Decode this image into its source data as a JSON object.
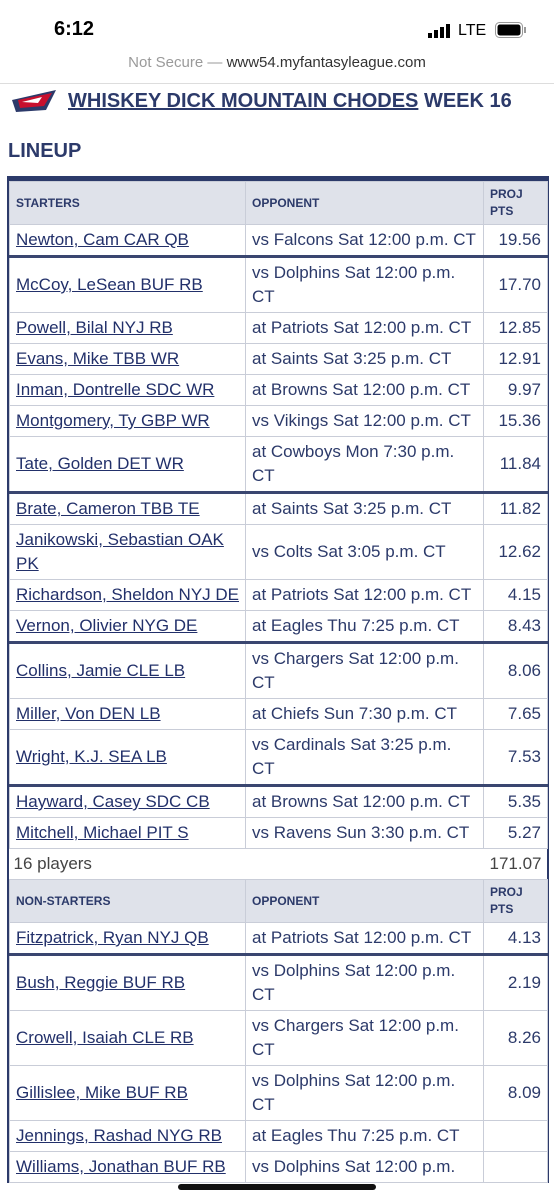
{
  "status_bar": {
    "time": "6:12",
    "network": "LTE"
  },
  "browser": {
    "security": "Not Secure",
    "separator": "—",
    "url": "www54.myfantasyleague.com"
  },
  "page": {
    "team": "WHISKEY DICK MOUNTAIN CHODES",
    "week": "WEEK 16",
    "section": "LINEUP"
  },
  "starters": {
    "headers": [
      "STARTERS",
      "OPPONENT",
      "PROJ PTS"
    ],
    "rows": [
      {
        "player": "Newton, Cam CAR QB",
        "opponent": "vs Falcons Sat 12:00 p.m. CT",
        "pts": "19.56"
      },
      {
        "player": "McCoy, LeSean BUF RB",
        "opponent": "vs Dolphins Sat 12:00 p.m. CT",
        "pts": "17.70"
      },
      {
        "player": "Powell, Bilal NYJ RB",
        "opponent": "at Patriots Sat 12:00 p.m. CT",
        "pts": "12.85"
      },
      {
        "player": "Evans, Mike TBB WR",
        "opponent": "at Saints Sat 3:25 p.m. CT",
        "pts": "12.91"
      },
      {
        "player": "Inman, Dontrelle SDC WR",
        "opponent": "at Browns Sat 12:00 p.m. CT",
        "pts": "9.97"
      },
      {
        "player": "Montgomery, Ty GBP WR",
        "opponent": "vs Vikings Sat 12:00 p.m. CT",
        "pts": "15.36"
      },
      {
        "player": "Tate, Golden DET WR",
        "opponent": "at Cowboys Mon 7:30 p.m. CT",
        "pts": "11.84"
      },
      {
        "player": "Brate, Cameron TBB TE",
        "opponent": "at Saints Sat 3:25 p.m. CT",
        "pts": "11.82"
      },
      {
        "player": "Janikowski, Sebastian OAK PK",
        "opponent": "vs Colts Sat 3:05 p.m. CT",
        "pts": "12.62"
      },
      {
        "player": "Richardson, Sheldon NYJ DE",
        "opponent": "at Patriots Sat 12:00 p.m. CT",
        "pts": "4.15"
      },
      {
        "player": "Vernon, Olivier NYG DE",
        "opponent": "at Eagles Thu 7:25 p.m. CT",
        "pts": "8.43"
      },
      {
        "player": "Collins, Jamie CLE LB",
        "opponent": "vs Chargers Sat 12:00 p.m. CT",
        "pts": "8.06"
      },
      {
        "player": "Miller, Von DEN LB",
        "opponent": "at Chiefs Sun 7:30 p.m. CT",
        "pts": "7.65"
      },
      {
        "player": "Wright, K.J. SEA LB",
        "opponent": "vs Cardinals Sat 3:25 p.m. CT",
        "pts": "7.53"
      },
      {
        "player": "Hayward, Casey SDC CB",
        "opponent": "at Browns Sat 12:00 p.m. CT",
        "pts": "5.35"
      },
      {
        "player": "Mitchell, Michael PIT S",
        "opponent": "vs Ravens Sun 3:30 p.m. CT",
        "pts": "5.27"
      }
    ],
    "footer": {
      "count": "16 players",
      "total": "171.07"
    }
  },
  "non_starters": {
    "headers": [
      "NON-STARTERS",
      "OPPONENT",
      "PROJ PTS"
    ],
    "rows": [
      {
        "player": "Fitzpatrick, Ryan NYJ QB",
        "opponent": "at Patriots Sat 12:00 p.m. CT",
        "pts": "4.13"
      },
      {
        "player": "Bush, Reggie BUF RB",
        "opponent": "vs Dolphins Sat 12:00 p.m. CT",
        "pts": "2.19"
      },
      {
        "player": "Crowell, Isaiah CLE RB",
        "opponent": "vs Chargers Sat 12:00 p.m. CT",
        "pts": "8.26"
      },
      {
        "player": "Gillislee, Mike BUF RB",
        "opponent": "vs Dolphins Sat 12:00 p.m. CT",
        "pts": "8.09"
      },
      {
        "player": "Jennings, Rashad NYG RB",
        "opponent": "at Eagles Thu 7:25 p.m. CT"
      },
      {
        "player": "Williams, Jonathan BUF RB",
        "opponent": "vs Dolphins Sat 12:00 p.m."
      }
    ]
  }
}
